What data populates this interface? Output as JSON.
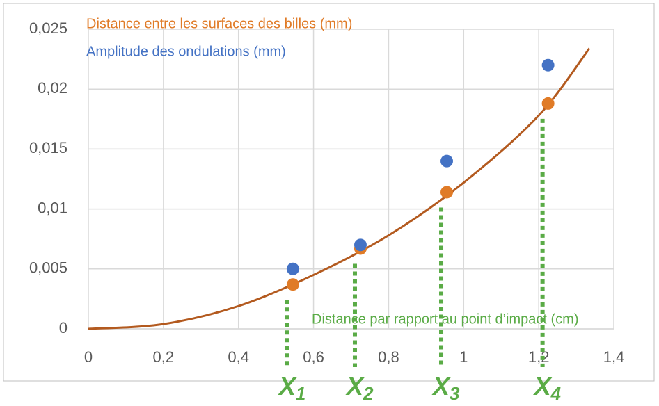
{
  "chart_data": {
    "type": "scatter",
    "x": [
      0.545,
      0.725,
      0.955,
      1.225
    ],
    "series": [
      {
        "name": "Distance entre les surfaces des billes (mm)",
        "color": "#e07b27",
        "values": [
          0.0037,
          0.0067,
          0.0114,
          0.0188
        ]
      },
      {
        "name": "Amplitude des ondulations (mm)",
        "color": "#4472c4",
        "values": [
          0.005,
          0.007,
          0.014,
          0.022
        ]
      }
    ],
    "curve": {
      "color": "#b35a1f",
      "x": [
        0,
        0.2,
        0.4,
        0.6,
        0.8,
        1.0,
        1.2,
        1.335
      ],
      "values": [
        0,
        0.0004,
        0.0019,
        0.0045,
        0.0078,
        0.0122,
        0.0178,
        0.0234
      ]
    },
    "x_label": "Distance par rapport au point d’impact (cm)",
    "annotations": [
      {
        "label": "X",
        "subscript": "1"
      },
      {
        "label": "X",
        "subscript": "2"
      },
      {
        "label": "X",
        "subscript": "3"
      },
      {
        "label": "X",
        "subscript": "4"
      }
    ],
    "annotation_color": "#5aab46",
    "xlim": [
      0,
      1.4
    ],
    "xticks": [
      0,
      {
        "value": 0.2,
        "label": "0,2"
      },
      {
        "value": 0.4,
        "label": "0,4"
      },
      {
        "value": 0.6,
        "label": "0,6"
      },
      {
        "value": 0.8,
        "label": "0,8"
      },
      1,
      {
        "value": 1.2,
        "label": "1,2"
      },
      {
        "value": 1.4,
        "label": "1,4"
      }
    ],
    "ylim": [
      0,
      0.025
    ],
    "yticks": [
      0,
      {
        "value": 0.005,
        "label": "0,005"
      },
      {
        "value": 0.01,
        "label": "0,01"
      },
      {
        "value": 0.015,
        "label": "0,015"
      },
      {
        "value": 0.02,
        "label": "0,02"
      },
      {
        "value": 0.025,
        "label": "0,025"
      }
    ],
    "grid": true
  }
}
